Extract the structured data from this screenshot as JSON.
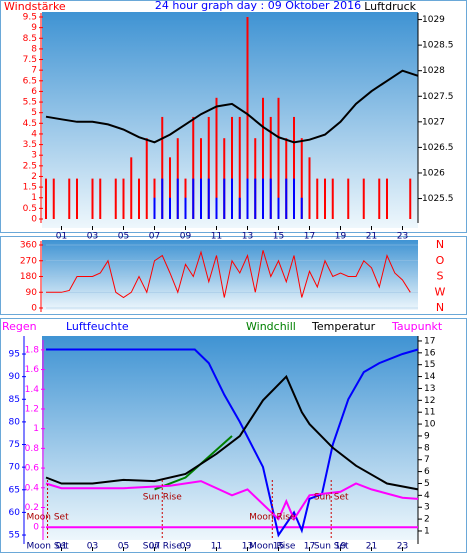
{
  "chart_data": [
    {
      "type": "combo",
      "title": "24 hour graph day : 09 Oktober 2016",
      "y_label": "Windstärke",
      "y2_label": "Luftdruck",
      "xlim": [
        0,
        24
      ],
      "xticks": [
        {
          "value": 1,
          "label": "01"
        },
        {
          "value": 3,
          "label": "03"
        },
        {
          "value": 5,
          "label": "05"
        },
        {
          "value": 7,
          "label": "07"
        },
        {
          "value": 9,
          "label": "09"
        },
        11,
        13,
        15,
        17,
        19,
        21,
        23
      ],
      "ylim": [
        0,
        9.5
      ],
      "yticks": [
        0,
        0.5,
        1,
        1.5,
        2,
        2.5,
        3,
        3.5,
        4,
        4.5,
        5,
        5.5,
        6,
        6.5,
        7,
        7.5,
        8,
        8.5,
        9,
        9.5
      ],
      "y2lim": [
        1025.1,
        1029.05
      ],
      "y2ticks": [
        1025.5,
        1026,
        1026.5,
        1027,
        1027.5,
        1028,
        1028.5,
        1029
      ],
      "series": [
        {
          "kind": "bar",
          "color": "#ff0000",
          "x": [
            0,
            0.5,
            1,
            1.5,
            2,
            2.5,
            3,
            3.5,
            4,
            4.5,
            5,
            5.5,
            6,
            6.5,
            7,
            7.5,
            8,
            8.5,
            9,
            9.5,
            10,
            10.5,
            11,
            11.5,
            12,
            12.5,
            13,
            13.5,
            14,
            14.5,
            15,
            15.5,
            16,
            16.5,
            17,
            17.5,
            18,
            18.5,
            19,
            19.5,
            20,
            20.5,
            21,
            21.5,
            22,
            22.5,
            23,
            23.5
          ],
          "values": [
            1.9,
            1.9,
            0,
            1.9,
            1.9,
            0,
            1.9,
            1.9,
            0,
            1.9,
            1.9,
            2.9,
            1.9,
            3.8,
            1.9,
            4.8,
            2.9,
            3.8,
            1.9,
            4.8,
            3.8,
            4.8,
            5.7,
            3.8,
            4.8,
            4.8,
            9.5,
            3.8,
            5.7,
            4.8,
            5.7,
            3.8,
            4.8,
            3.8,
            2.9,
            1.9,
            1.9,
            1.9,
            0,
            1.9,
            0,
            1.9,
            0,
            1.9,
            1.9,
            0,
            0,
            1.9
          ]
        },
        {
          "kind": "bar",
          "color": "#0000ff",
          "x": [
            0,
            0.5,
            1,
            1.5,
            2,
            2.5,
            3,
            3.5,
            4,
            4.5,
            5,
            5.5,
            6,
            6.5,
            7,
            7.5,
            8,
            8.5,
            9,
            9.5,
            10,
            10.5,
            11,
            11.5,
            12,
            12.5,
            13,
            13.5,
            14,
            14.5,
            15,
            15.5,
            16,
            16.5,
            17,
            17.5,
            18,
            18.5,
            19,
            19.5,
            20,
            20.5,
            21,
            21.5,
            22,
            22.5,
            23,
            23.5
          ],
          "values": [
            0,
            0,
            0,
            0,
            0,
            0,
            0,
            0,
            0,
            0,
            0,
            0,
            0,
            0,
            1,
            1.9,
            1,
            1.9,
            1,
            1.9,
            1.9,
            1.9,
            1,
            1.9,
            1.9,
            1,
            1.9,
            1.9,
            1.9,
            1.9,
            1,
            1.9,
            1.9,
            1,
            0,
            0,
            0,
            0,
            0,
            0,
            0,
            0,
            0,
            0,
            0,
            0,
            0,
            0
          ]
        },
        {
          "kind": "line",
          "axis": "y2",
          "color": "#000000",
          "x": [
            0,
            1,
            2,
            3,
            4,
            5,
            6,
            7,
            8,
            9,
            10,
            11,
            12,
            13,
            14,
            15,
            16,
            17,
            18,
            19,
            20,
            21,
            22,
            23,
            24
          ],
          "values": [
            1027.1,
            1027.05,
            1027.0,
            1027.0,
            1026.95,
            1026.85,
            1026.7,
            1026.6,
            1026.75,
            1026.95,
            1027.15,
            1027.3,
            1027.35,
            1027.15,
            1026.9,
            1026.7,
            1026.6,
            1026.65,
            1026.75,
            1027.0,
            1027.35,
            1027.6,
            1027.8,
            1028.0,
            1027.9
          ]
        }
      ]
    },
    {
      "type": "line",
      "xlim": [
        0,
        24
      ],
      "ylim": [
        0,
        360
      ],
      "yticks": [
        0,
        90,
        180,
        270,
        360
      ],
      "direction_labels": [
        "N",
        "W",
        "S",
        "O",
        "N"
      ],
      "series": [
        {
          "color": "#ff0000",
          "x": [
            0,
            0.5,
            1,
            1.5,
            2,
            2.5,
            3,
            3.5,
            4,
            4.5,
            5,
            5.5,
            6,
            6.5,
            7,
            7.5,
            8,
            8.5,
            9,
            9.5,
            10,
            10.5,
            11,
            11.5,
            12,
            12.5,
            13,
            13.5,
            14,
            14.5,
            15,
            15.5,
            16,
            16.5,
            17,
            17.5,
            18,
            18.5,
            19,
            19.5,
            20,
            20.5,
            21,
            21.5,
            22,
            22.5,
            23,
            23.5
          ],
          "values": [
            90,
            90,
            90,
            100,
            180,
            180,
            180,
            200,
            270,
            90,
            60,
            90,
            180,
            90,
            270,
            300,
            200,
            90,
            250,
            180,
            320,
            150,
            300,
            60,
            270,
            200,
            300,
            90,
            330,
            180,
            270,
            150,
            300,
            60,
            210,
            120,
            270,
            180,
            200,
            180,
            180,
            270,
            230,
            120,
            300,
            200,
            160,
            90
          ]
        }
      ]
    },
    {
      "type": "line",
      "xlim": [
        0,
        24
      ],
      "xticks": [
        {
          "value": 1,
          "label": "01"
        },
        {
          "value": 3,
          "label": "03"
        },
        {
          "value": 5,
          "label": "05"
        },
        {
          "value": 7,
          "label": "07"
        },
        {
          "value": 9,
          "label": "09"
        },
        11,
        13,
        15,
        17,
        19,
        21,
        23
      ],
      "ylim": [
        53.9,
        98.1
      ],
      "yticks": [
        55,
        60,
        65,
        70,
        75,
        80,
        85,
        90,
        95
      ],
      "y2lim": [
        0.24,
        17.08
      ],
      "y2ticks": [
        1,
        2,
        3,
        4,
        5,
        6,
        7,
        8,
        9,
        10,
        11,
        12,
        13,
        14,
        15,
        16,
        17
      ],
      "y3lim": [
        -0.13,
        1.9
      ],
      "y3ticks": [
        0,
        0.2,
        0.4,
        0.6,
        0.8,
        1,
        1.2,
        1.4,
        1.6,
        1.8
      ],
      "series": [
        {
          "name": "Regen",
          "axis": "y3",
          "color": "#ff00ff",
          "x": [
            0,
            12,
            24
          ],
          "values": [
            0,
            0,
            0
          ]
        },
        {
          "name": "Luftfeuchte",
          "color": "#0000ff",
          "x": [
            0,
            9.6,
            10.5,
            11.5,
            12.5,
            14,
            15,
            16,
            16.5,
            17,
            17.8,
            18.5,
            19.5,
            20.5,
            21.5,
            23,
            24
          ],
          "values": [
            96,
            96,
            93,
            86,
            80,
            70,
            55,
            60,
            56,
            63,
            64,
            75,
            85,
            91,
            93,
            95,
            96
          ]
        },
        {
          "name": "Windchill",
          "axis": "y2",
          "color": "#008000",
          "x": [
            7,
            9,
            12
          ],
          "values": [
            4.5,
            5.5,
            9
          ]
        },
        {
          "name": "Temperatur",
          "axis": "y2",
          "color": "#000000",
          "x": [
            0,
            1,
            3,
            5,
            7,
            9,
            11,
            12.5,
            14,
            15.5,
            16.5,
            17,
            18.5,
            20,
            22,
            24
          ],
          "values": [
            5.5,
            5,
            5,
            5.3,
            5.2,
            5.8,
            7.5,
            9,
            12,
            14,
            11,
            10,
            8,
            6.5,
            5,
            4.5
          ]
        },
        {
          "name": "Taupunkt",
          "axis": "y2",
          "color": "#ff00ff",
          "x": [
            0,
            1,
            5,
            8,
            10,
            12,
            13,
            15,
            15.5,
            16,
            17,
            19,
            20,
            21,
            23,
            24
          ],
          "values": [
            5,
            4.6,
            4.6,
            4.8,
            5.2,
            4,
            4.5,
            2,
            3.5,
            2,
            4,
            4.3,
            5,
            4.5,
            3.8,
            3.7
          ]
        }
      ],
      "annotations": [
        {
          "text": "Moon Set",
          "x": 0.1
        },
        {
          "text": "Sun Rise",
          "x": 7.5
        },
        {
          "text": "Moon Rise",
          "x": 14.6
        },
        {
          "text": "Sun Set",
          "x": 18.4
        }
      ]
    }
  ]
}
